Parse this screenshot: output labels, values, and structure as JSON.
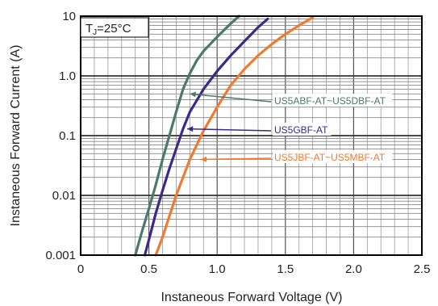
{
  "chart_data": {
    "type": "line",
    "xlabel": "Instaneous Forward Voltage (V)",
    "ylabel": "Instaneous Forward Current (A)",
    "xlim": [
      0,
      2.5
    ],
    "ylim": [
      0.001,
      10
    ],
    "yscale": "log",
    "grid": true,
    "x_ticks": [
      {
        "value": 0,
        "label": "0"
      },
      {
        "value": 0.5,
        "label": "0.5"
      },
      {
        "value": 1.0,
        "label": "1.0"
      },
      {
        "value": 1.5,
        "label": "1.5"
      },
      {
        "value": 2.0,
        "label": "2.0"
      },
      {
        "value": 2.5,
        "label": "2.5"
      }
    ],
    "y_ticks": [
      {
        "value": 0.001,
        "label": "0.001"
      },
      {
        "value": 0.01,
        "label": "0.01"
      },
      {
        "value": 0.1,
        "label": "0.1"
      },
      {
        "value": 1,
        "label": "1.0"
      },
      {
        "value": 10,
        "label": "10"
      }
    ],
    "temperature_label": "TJ=25°C",
    "series": [
      {
        "name": "US5ABF-AT~US5DBF-AT",
        "color": "#4c7a6a",
        "x": [
          0.4,
          0.45,
          0.5,
          0.55,
          0.6,
          0.65,
          0.7,
          0.75,
          0.8,
          0.85,
          0.9,
          1.0,
          1.1,
          1.16
        ],
        "y": [
          0.001,
          0.0025,
          0.006,
          0.015,
          0.04,
          0.1,
          0.25,
          0.6,
          1.1,
          1.8,
          2.6,
          4.5,
          7.5,
          10
        ]
      },
      {
        "name": "US5GBF-AT",
        "color": "#3b2a8a",
        "x": [
          0.47,
          0.5,
          0.55,
          0.6,
          0.65,
          0.7,
          0.75,
          0.8,
          0.9,
          1.0,
          1.1,
          1.2,
          1.3,
          1.37
        ],
        "y": [
          0.001,
          0.0018,
          0.005,
          0.012,
          0.028,
          0.06,
          0.13,
          0.25,
          0.6,
          1.2,
          2.2,
          3.8,
          6.5,
          9.0
        ]
      },
      {
        "name": "US5JBF-AT~US5MBF-AT",
        "color": "#f07a2e",
        "x": [
          0.55,
          0.6,
          0.65,
          0.7,
          0.75,
          0.8,
          0.9,
          1.0,
          1.1,
          1.2,
          1.3,
          1.4,
          1.5,
          1.6,
          1.7
        ],
        "y": [
          0.001,
          0.002,
          0.0045,
          0.01,
          0.02,
          0.04,
          0.12,
          0.3,
          0.7,
          1.3,
          2.2,
          3.4,
          5.0,
          7.0,
          9.5
        ]
      }
    ],
    "annotations": [
      {
        "series": 0,
        "text": "US5ABF-AT~US5DBF-AT",
        "arrow_to": {
          "x": 0.8,
          "y": 0.5
        }
      },
      {
        "series": 1,
        "text": "US5GBF-AT",
        "arrow_to": {
          "x": 0.78,
          "y": 0.13
        }
      },
      {
        "series": 2,
        "text": "US5JBF-AT~US5MBF-AT",
        "arrow_to": {
          "x": 0.88,
          "y": 0.04
        }
      }
    ]
  }
}
